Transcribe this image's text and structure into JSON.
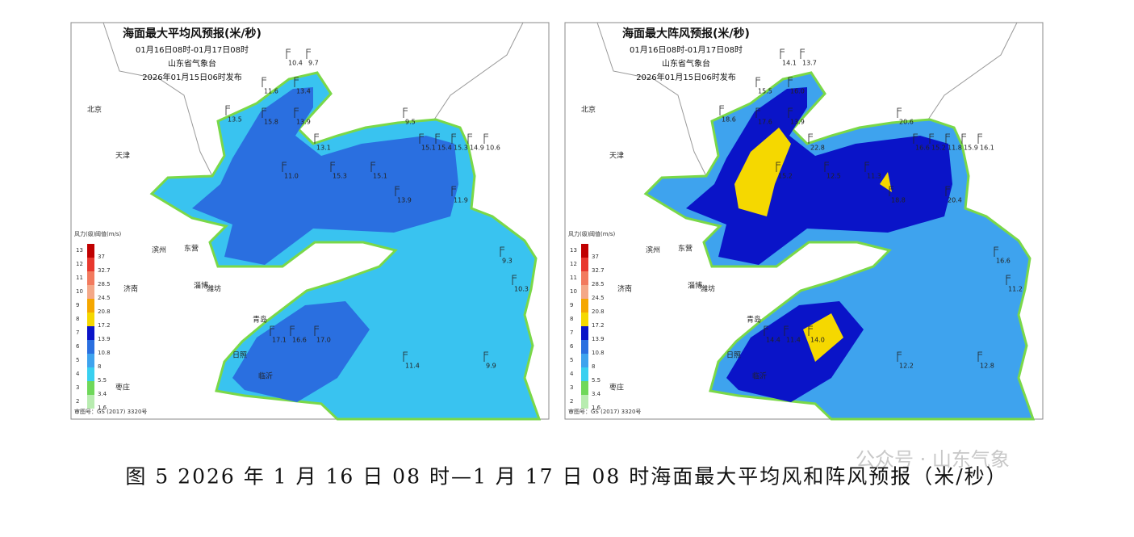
{
  "panels": [
    {
      "title": "海面最大平均风预报(米/秒)",
      "period": "01月16日08时-01月17日08时",
      "issuer": "山东省气象台",
      "issued": "2026年01月15日06时发布",
      "stations": [
        "10.4",
        "9.7",
        "11.6",
        "13.4",
        "13.5",
        "15.8",
        "13.9",
        "13.1",
        "9.5",
        "15.1",
        "15.4",
        "15.3",
        "14.9",
        "10.6",
        "11.0",
        "15.3",
        "15.1",
        "13.9",
        "11.9",
        "9.3",
        "17.1",
        "16.6",
        "17.0",
        "11.4",
        "9.9",
        "10.3"
      ]
    },
    {
      "title": "海面最大阵风预报(米/秒)",
      "period": "01月16日08时-01月17日08时",
      "issuer": "山东省气象台",
      "issued": "2026年01月15日06时发布",
      "stations": [
        "14.1",
        "13.7",
        "15.5",
        "16.0",
        "18.6",
        "17.6",
        "13.9",
        "22.8",
        "20.6",
        "16.6",
        "15.2",
        "11.8",
        "15.9",
        "16.1",
        "15.2",
        "12.5",
        "11.3",
        "18.8",
        "20.4",
        "16.6",
        "14.4",
        "11.4",
        "14.0",
        "12.2",
        "12.8",
        "11.2"
      ]
    }
  ],
  "places": [
    "北京",
    "天津",
    "滨州",
    "东营",
    "淄博",
    "济南",
    "潍坊",
    "青岛",
    "日照",
    "临沂",
    "枣庄"
  ],
  "legend": {
    "head_level": "风力(级)",
    "head_speed": "阈值(m/s)",
    "levels": [
      "13",
      "12",
      "11",
      "10",
      "9",
      "8",
      "7",
      "6",
      "5",
      "4",
      "3",
      "2"
    ],
    "speeds": [
      "37",
      "32.7",
      "28.5",
      "24.5",
      "20.8",
      "17.2",
      "13.9",
      "10.8",
      "8",
      "5.5",
      "3.4",
      "1.6"
    ],
    "colors": [
      "#c00000",
      "#e8382e",
      "#f27a5e",
      "#f4a888",
      "#f5a700",
      "#f5d800",
      "#0a14c8",
      "#2a6fe0",
      "#3ea3ee",
      "#39d0f0",
      "#6fd85a",
      "#b8ecb0"
    ]
  },
  "approval": "审图号：GS (2017) 3320号",
  "caption": "图 5 2026 年 1 月 16 日 08 时—1 月 17 日 08 时海面最大平均风和阵风预报（米/秒）",
  "watermark": "公众号 · 山东气象"
}
